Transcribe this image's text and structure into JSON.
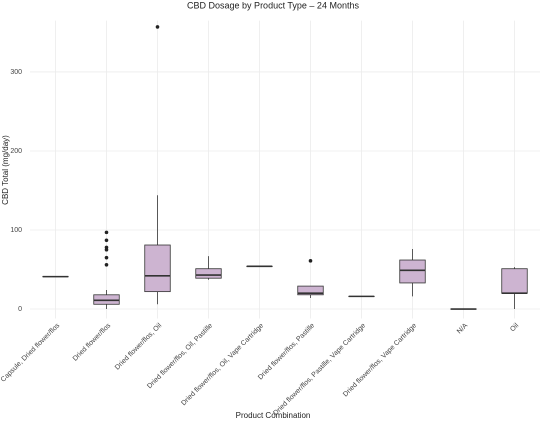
{
  "chart_data": {
    "type": "boxplot",
    "title": "CBD Dosage by Product Type – 24 Months",
    "x_label": "Product Combination",
    "y_label": "CBD Total (mg/day)",
    "categories": [
      "Capsule, Dried flower/flos",
      "Dried flower/flos",
      "Dried flower/flos, Oil",
      "Dried flower/flos, Oil, Pastille",
      "Dried flower/flos, Oil, Vape Cartridge",
      "Dried flower/flos, Pastille",
      "Dried flower/flos, Pastille, Vape Cartridge",
      "Dried flower/flos, Vape Cartridge",
      "N/A",
      "Oil"
    ],
    "boxes": [
      {
        "min": 41,
        "q1": 41,
        "median": 41,
        "q3": 41,
        "max": 41,
        "outliers": []
      },
      {
        "min": 0,
        "q1": 6,
        "median": 11,
        "q3": 18,
        "max": 24,
        "outliers": [
          97,
          87,
          78,
          75,
          65,
          56
        ]
      },
      {
        "min": 6,
        "q1": 22,
        "median": 42,
        "q3": 81,
        "max": 144,
        "outliers": [
          357
        ]
      },
      {
        "min": 37,
        "q1": 39,
        "median": 43,
        "q3": 51,
        "max": 67,
        "outliers": []
      },
      {
        "min": 54,
        "q1": 54,
        "median": 54,
        "q3": 54,
        "max": 54,
        "outliers": []
      },
      {
        "min": 14,
        "q1": 18,
        "median": 20,
        "q3": 29,
        "max": 29,
        "outliers": [
          61
        ]
      },
      {
        "min": 16,
        "q1": 16,
        "median": 16,
        "q3": 16,
        "max": 16,
        "outliers": []
      },
      {
        "min": 16,
        "q1": 33,
        "median": 49,
        "q3": 62,
        "max": 76,
        "outliers": []
      },
      {
        "min": 0,
        "q1": 0,
        "median": 0,
        "q3": 0,
        "max": 0,
        "outliers": []
      },
      {
        "min": 0,
        "q1": 20,
        "median": 20,
        "q3": 51,
        "max": 53,
        "outliers": []
      }
    ],
    "color": "#cdb4d1",
    "ylim": [
      -12,
      365
    ],
    "yticks": [
      0,
      100,
      200,
      300
    ],
    "grid": true
  }
}
